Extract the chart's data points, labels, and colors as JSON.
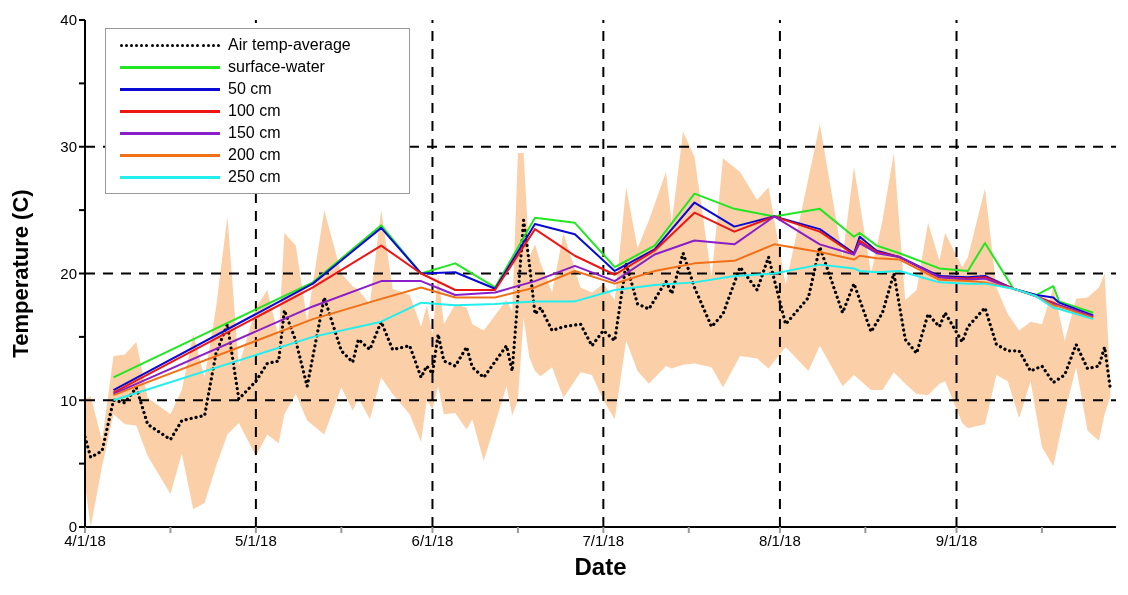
{
  "chart_data": {
    "type": "line",
    "xlabel": "Date",
    "ylabel": "Temperature (C)",
    "xlim": [
      "--04-01",
      "--09-29"
    ],
    "xticks": [
      {
        "value": "--04-01",
        "label": "4/1/18"
      },
      {
        "value": "--04-16",
        "label": null
      },
      {
        "value": "--05-01",
        "label": "5/1/18"
      },
      {
        "value": "--05-16",
        "label": null
      },
      {
        "value": "--06-01",
        "label": "6/1/18"
      },
      {
        "value": "--06-16",
        "label": null
      },
      {
        "value": "--07-01",
        "label": "7/1/18"
      },
      {
        "value": "--07-16",
        "label": null
      },
      {
        "value": "--08-01",
        "label": "8/1/18"
      },
      {
        "value": "--08-16",
        "label": null
      },
      {
        "value": "--09-01",
        "label": "9/1/18"
      },
      {
        "value": "--09-16",
        "label": null
      }
    ],
    "ylim": [
      0,
      40
    ],
    "yticks": [
      0,
      {
        "value": 5,
        "label": null
      },
      10,
      {
        "value": 15,
        "label": null
      },
      20,
      {
        "value": 25,
        "label": null
      },
      30,
      {
        "value": 35,
        "label": null
      },
      40
    ],
    "grid": true,
    "legend": "top left",
    "x": [
      "--04-06",
      "--05-11",
      "--05-23",
      "--05-30",
      "--06-05",
      "--06-12",
      "--06-19",
      "--06-26",
      "--07-03",
      "--07-10",
      "--07-17",
      "--07-24",
      "--07-31",
      "--08-08",
      "--08-14",
      "--08-15",
      "--08-18",
      "--08-22",
      "--08-29",
      "--09-03",
      "--09-06",
      "--09-11",
      "--09-15",
      "--09-18",
      "--09-19",
      "--09-25"
    ],
    "series": [
      {
        "name": "Air temp-average",
        "color": "#000000",
        "line_style": "dotted",
        "x": [
          "--04-01",
          "--04-02",
          "--04-04",
          "--04-06",
          "--04-08",
          "--04-10",
          "--04-12",
          "--04-16",
          "--04-18",
          "--04-20",
          "--04-22",
          "--04-24",
          "--04-26",
          "--04-28",
          "--05-01",
          "--05-03",
          "--05-05",
          "--05-06",
          "--05-08",
          "--05-10",
          "--05-13",
          "--05-16",
          "--05-18",
          "--05-19",
          "--05-21",
          "--05-23",
          "--05-25",
          "--05-28",
          "--05-30",
          "--05-31",
          "--06-01",
          "--06-02",
          "--06-03",
          "--06-05",
          "--06-07",
          "--06-08",
          "--06-10",
          "--06-14",
          "--06-15",
          "--06-16",
          "--06-17",
          "--06-18",
          "--06-19",
          "--06-20",
          "--06-22",
          "--06-24",
          "--06-27",
          "--06-29",
          "--07-01",
          "--07-03",
          "--07-05",
          "--07-07",
          "--07-09",
          "--07-12",
          "--07-13",
          "--07-15",
          "--07-17",
          "--07-20",
          "--07-22",
          "--07-25",
          "--07-28",
          "--07-30",
          "--08-02",
          "--08-06",
          "--08-08",
          "--08-12",
          "--08-14",
          "--08-17",
          "--08-19",
          "--08-21",
          "--08-23",
          "--08-25",
          "--08-27",
          "--08-29",
          "--08-30",
          "--09-02",
          "--09-03",
          "--09-06",
          "--09-08",
          "--09-10",
          "--09-12",
          "--09-14",
          "--09-16",
          "--09-18",
          "--09-20",
          "--09-22",
          "--09-24",
          "--09-26",
          "--09-27",
          "--09-28"
        ],
        "values": [
          7.1,
          5.5,
          6.0,
          10.0,
          9.8,
          11.0,
          8.1,
          6.9,
          8.4,
          8.6,
          8.8,
          13.7,
          16.0,
          10.1,
          11.5,
          12.9,
          13.1,
          17.1,
          14.7,
          11.1,
          18.1,
          13.9,
          13.0,
          14.8,
          14.0,
          16.2,
          14.0,
          14.3,
          11.8,
          12.7,
          12.1,
          15.2,
          13.1,
          12.7,
          14.2,
          12.6,
          11.8,
          14.3,
          12.3,
          18.1,
          24.2,
          20.8,
          16.8,
          17.3,
          15.5,
          15.8,
          16.0,
          14.3,
          15.5,
          14.7,
          20.8,
          17.6,
          17.2,
          19.4,
          18.4,
          21.6,
          18.9,
          15.8,
          16.8,
          20.5,
          18.7,
          21.3,
          16.0,
          18.1,
          22.1,
          16.9,
          19.2,
          15.4,
          16.9,
          20.0,
          14.8,
          13.7,
          16.8,
          15.8,
          16.9,
          14.6,
          15.8,
          17.3,
          14.4,
          13.9,
          13.9,
          12.3,
          12.7,
          11.4,
          12.0,
          14.4,
          12.5,
          12.7,
          14.2,
          10.9
        ],
        "upper": [
          10.1,
          10.3,
          6.8,
          13.5,
          13.6,
          14.6,
          10.2,
          8.9,
          10.8,
          15.2,
          11.8,
          17.3,
          24.5,
          12.7,
          17.3,
          18.7,
          15.0,
          23.2,
          22.2,
          16.3,
          25.0,
          20.0,
          19.0,
          18.7,
          17.6,
          25.0,
          18.8,
          18.3,
          15.8,
          17.5,
          15.2,
          20.0,
          16.0,
          17.6,
          17.3,
          16.0,
          15.5,
          17.9,
          17.0,
          29.5,
          29.5,
          21.3,
          22.3,
          20.8,
          18.5,
          23.2,
          18.9,
          18.5,
          19.2,
          17.9,
          26.8,
          22.0,
          24.2,
          28.0,
          24.0,
          31.2,
          29.2,
          19.7,
          29.1,
          28.0,
          25.8,
          26.8,
          19.1,
          27.5,
          31.8,
          21.3,
          28.4,
          20.0,
          24.2,
          29.5,
          17.9,
          18.7,
          24.0,
          21.0,
          23.2,
          20.5,
          21.3,
          26.7,
          18.9,
          16.8,
          15.5,
          16.2,
          16.0,
          18.9,
          14.7,
          18.0,
          18.1,
          18.9,
          20.0,
          11.5
        ],
        "lower": [
          3.4,
          0,
          4.8,
          8.9,
          8.1,
          8.0,
          5.6,
          2.6,
          5.8,
          1.4,
          1.9,
          4.8,
          7.3,
          8.2,
          5.6,
          7.3,
          6.6,
          8.9,
          10.5,
          8.4,
          7.3,
          11.0,
          9.2,
          10.2,
          8.5,
          11.8,
          10.5,
          8.9,
          6.7,
          10.0,
          9.3,
          11.1,
          8.9,
          9.0,
          7.7,
          8.5,
          5.2,
          11.1,
          8.8,
          10.0,
          16.5,
          13.4,
          12.3,
          11.9,
          12.6,
          10.2,
          12.2,
          12.0,
          10.0,
          8.5,
          14.7,
          12.3,
          11.3,
          12.7,
          12.5,
          12.8,
          12.9,
          12.6,
          11.0,
          13.5,
          13.3,
          12.5,
          14.2,
          12.3,
          14.3,
          11.1,
          12.0,
          10.8,
          10.8,
          12.2,
          11.3,
          10.5,
          10.4,
          11.3,
          11.5,
          8.2,
          7.8,
          8.1,
          12.0,
          11.5,
          8.6,
          11.5,
          6.3,
          4.8,
          9.0,
          12.6,
          7.6,
          6.8,
          8.9,
          10.3
        ]
      },
      {
        "name": "surface-water",
        "color": "#22e622",
        "line_style": "solid",
        "values": [
          11.8,
          19.3,
          23.8,
          20.0,
          20.8,
          18.9,
          24.4,
          24.0,
          20.5,
          22.2,
          26.3,
          25.1,
          24.5,
          25.1,
          22.9,
          23.2,
          22.2,
          21.6,
          20.4,
          20.2,
          22.4,
          18.8,
          18.3,
          19.0,
          17.8,
          16.9
        ]
      },
      {
        "name": "50 cm",
        "color": "#0a0ad2",
        "line_style": "solid",
        "values": [
          10.8,
          19.2,
          23.6,
          20.0,
          20.1,
          18.8,
          23.9,
          23.1,
          20.2,
          21.9,
          25.6,
          23.7,
          24.5,
          23.5,
          21.6,
          22.9,
          21.8,
          21.3,
          19.8,
          19.7,
          19.8,
          18.8,
          18.3,
          18.1,
          17.7,
          16.7
        ]
      },
      {
        "name": "100 cm",
        "color": "#ee1515",
        "line_style": "solid",
        "values": [
          10.6,
          18.9,
          22.2,
          20.0,
          18.7,
          18.7,
          23.5,
          21.4,
          19.9,
          21.8,
          24.8,
          23.3,
          24.5,
          23.3,
          21.5,
          22.6,
          21.7,
          21.3,
          19.7,
          19.6,
          19.7,
          18.8,
          18.2,
          17.7,
          17.5,
          16.6
        ]
      },
      {
        "name": "150 cm",
        "color": "#8a1ec8",
        "line_style": "solid",
        "values": [
          10.5,
          17.4,
          19.4,
          19.4,
          18.3,
          18.5,
          19.4,
          20.6,
          19.4,
          21.5,
          22.6,
          22.3,
          24.5,
          22.3,
          21.5,
          22.4,
          21.6,
          21.3,
          19.7,
          19.5,
          19.6,
          18.8,
          18.2,
          17.6,
          17.5,
          16.6
        ]
      },
      {
        "name": "200 cm",
        "color": "#f07018",
        "line_style": "solid",
        "values": [
          10.4,
          16.4,
          18.0,
          18.9,
          18.1,
          18.1,
          18.9,
          20.2,
          19.2,
          20.2,
          20.8,
          21.0,
          22.3,
          21.7,
          21.1,
          21.4,
          21.2,
          21.1,
          19.5,
          19.4,
          19.3,
          18.8,
          18.2,
          17.5,
          17.4,
          16.5
        ]
      },
      {
        "name": "250 cm",
        "color": "#22eeee",
        "line_style": "solid",
        "values": [
          10.0,
          15.0,
          16.2,
          17.7,
          17.5,
          17.6,
          17.8,
          17.8,
          18.7,
          19.1,
          19.3,
          19.8,
          20.0,
          20.7,
          20.4,
          20.2,
          20.1,
          20.2,
          19.3,
          19.2,
          19.2,
          18.8,
          18.2,
          17.3,
          17.2,
          16.4
        ]
      }
    ]
  }
}
